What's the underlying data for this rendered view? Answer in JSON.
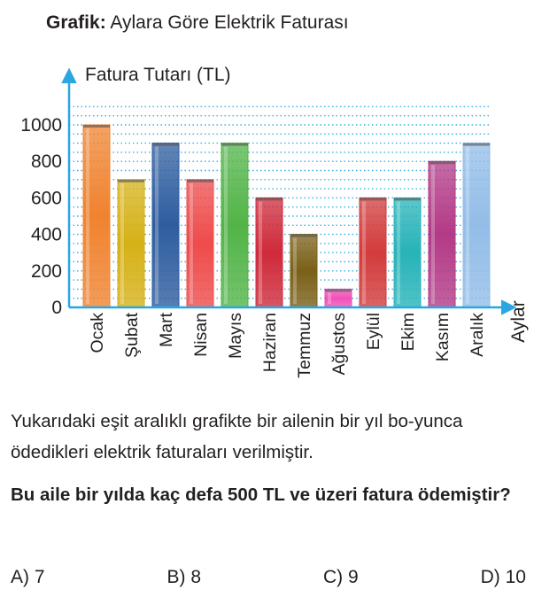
{
  "header": {
    "prefix": "Grafik:",
    "title": "Aylara Göre Elektrik Faturası"
  },
  "chart_data": {
    "type": "bar",
    "ylabel": "Fatura Tutarı (TL)",
    "xlabel": "Aylar",
    "categories": [
      "Ocak",
      "Şubat",
      "Mart",
      "Nisan",
      "Mayıs",
      "Haziran",
      "Temmuz",
      "Ağustos",
      "Eylül",
      "Ekim",
      "Kasım",
      "Aralık"
    ],
    "values": [
      1000,
      700,
      900,
      700,
      900,
      600,
      400,
      100,
      600,
      600,
      800,
      900
    ],
    "colors": [
      "#f0832f",
      "#d6b117",
      "#2e5d9f",
      "#ef4b4b",
      "#52b447",
      "#cf2a3a",
      "#7a6018",
      "#f152b8",
      "#d33b3b",
      "#27b3b8",
      "#b33a86",
      "#93bde8"
    ],
    "yticks": [
      0,
      200,
      400,
      600,
      800,
      1000
    ],
    "ylim": [
      0,
      1100
    ],
    "grid": true
  },
  "problem": {
    "text": "Yukarıdaki eşit aralıklı grafikte bir ailenin bir yıl bo-yunca ödedikleri elektrik faturaları verilmiştir.",
    "question": "Bu aile bir yılda kaç defa 500 TL ve üzeri fatura ödemiştir?"
  },
  "options": [
    {
      "label": "A) 7"
    },
    {
      "label": "B) 8"
    },
    {
      "label": "C) 9"
    },
    {
      "label": "D) 10"
    }
  ]
}
